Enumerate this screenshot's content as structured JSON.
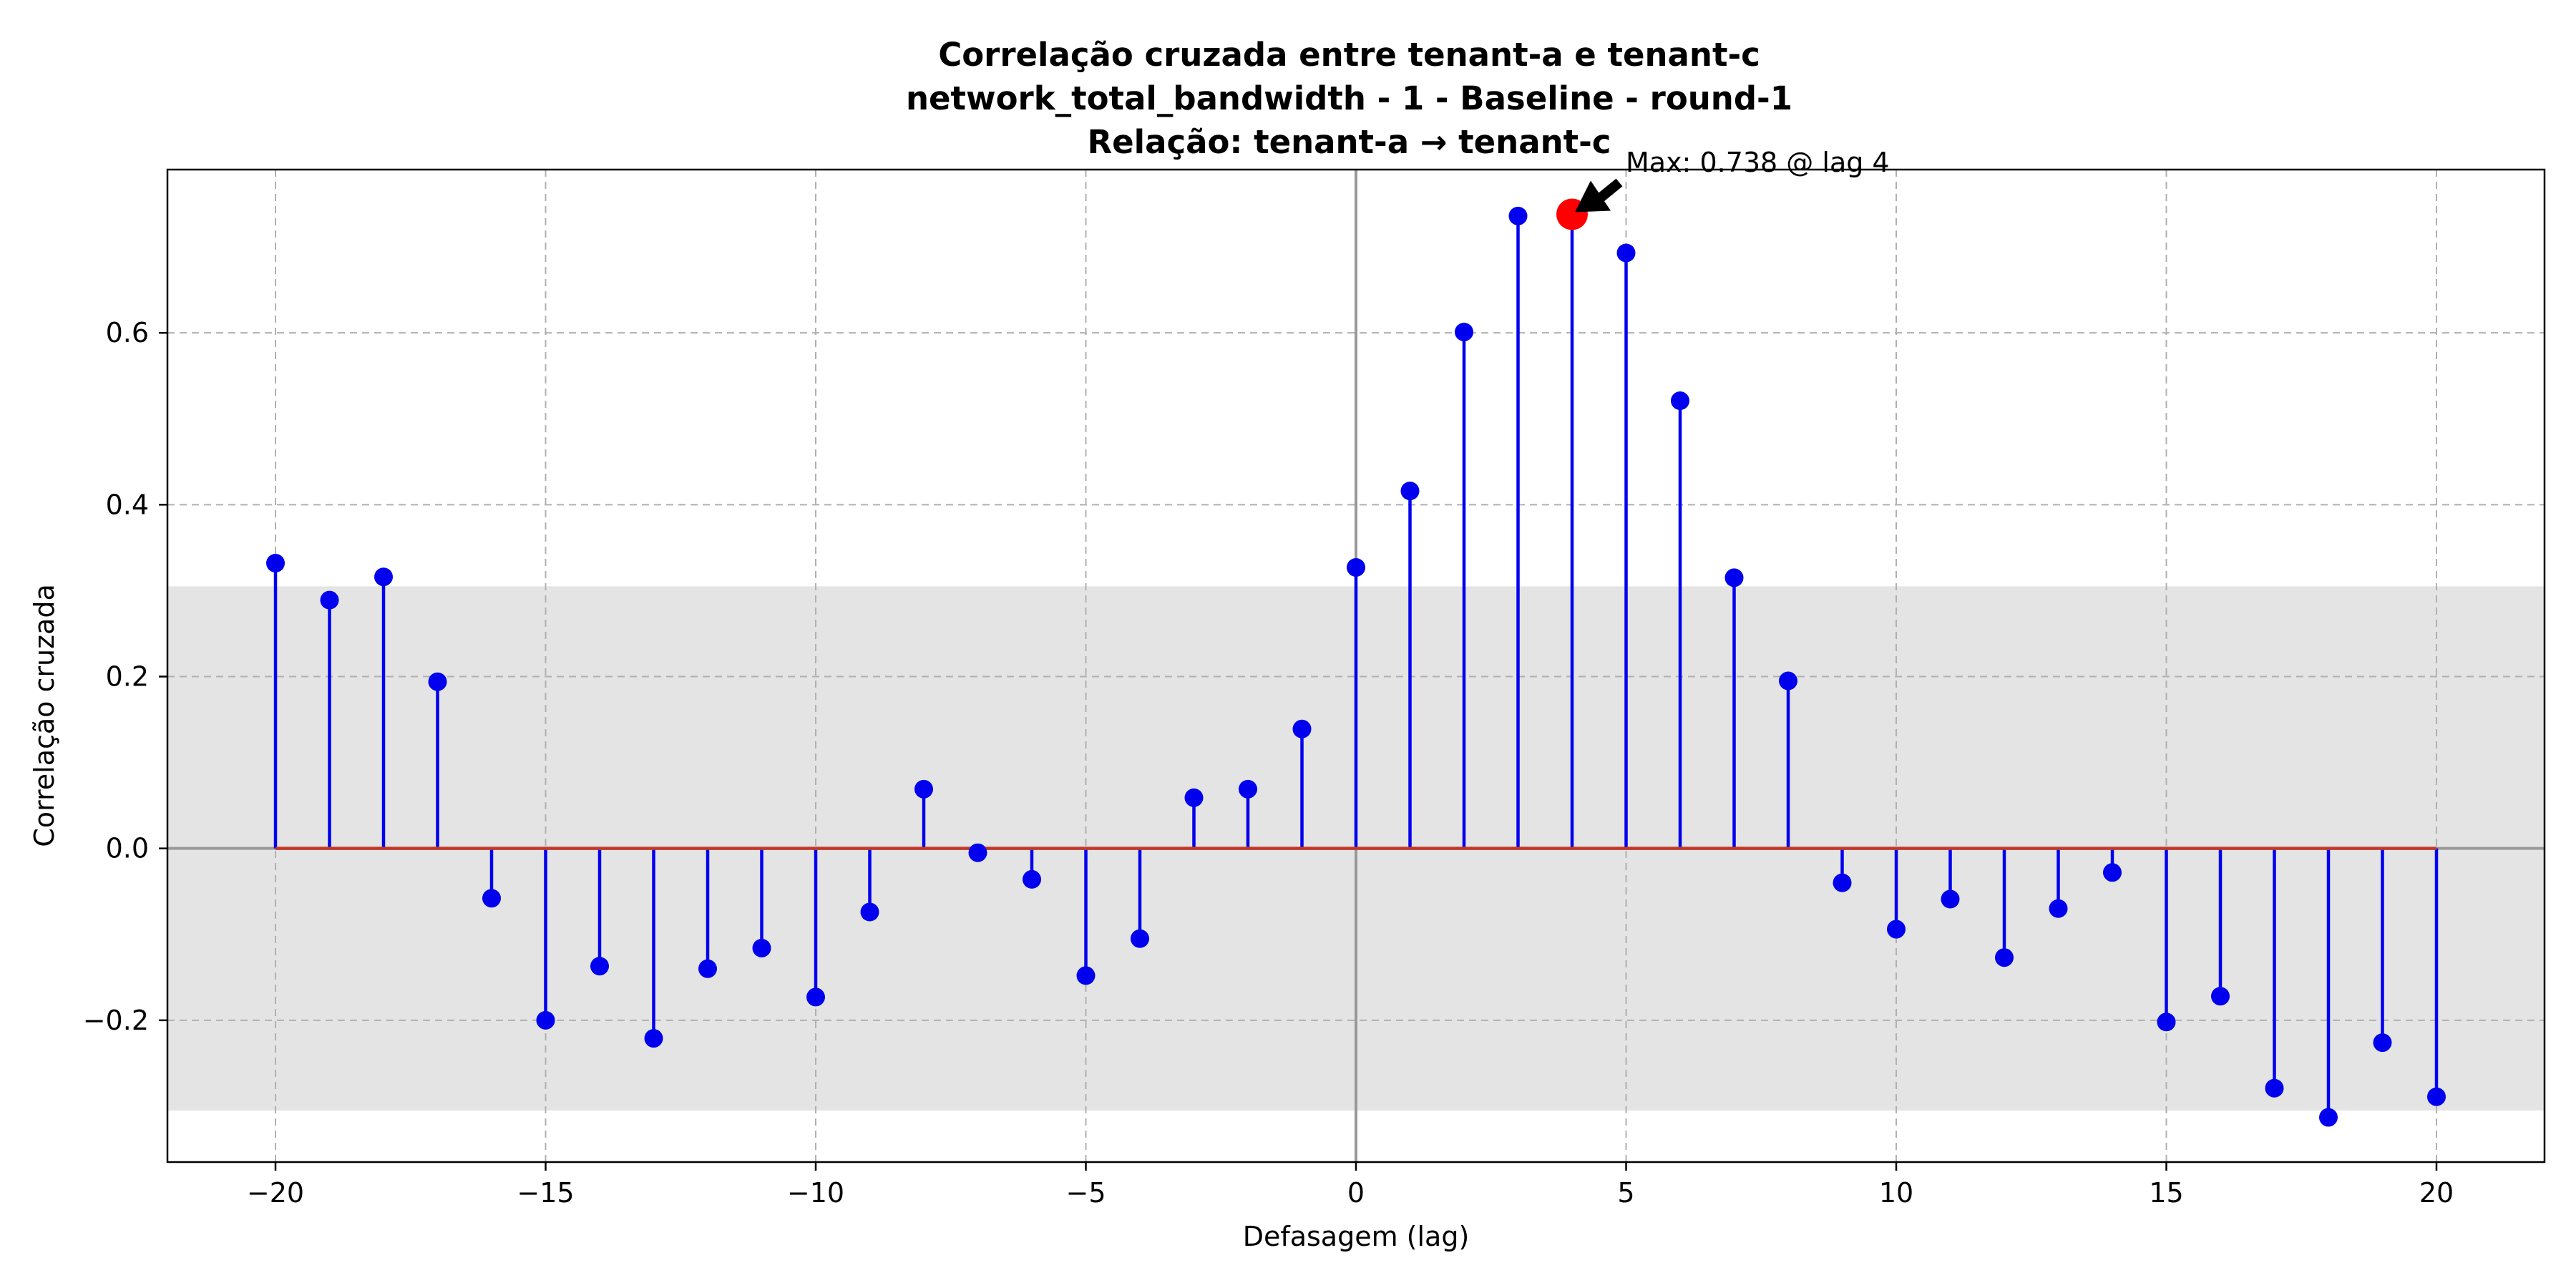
{
  "chart_data": {
    "type": "stem",
    "title_lines": [
      "Correlação cruzada entre tenant-a e tenant-c",
      "network_total_bandwidth - 1 - Baseline - round-1",
      "Relação: tenant-a → tenant-c"
    ],
    "xlabel": "Defasagem (lag)",
    "ylabel": "Correlação cruzada",
    "xlim": [
      -22,
      22
    ],
    "ylim": [
      -0.365,
      0.79
    ],
    "xticks": [
      -20,
      -15,
      -10,
      -5,
      0,
      5,
      10,
      15,
      20
    ],
    "xtick_labels": [
      "−20",
      "−15",
      "−10",
      "−5",
      "0",
      "5",
      "10",
      "15",
      "20"
    ],
    "yticks": [
      -0.2,
      0.0,
      0.2,
      0.4,
      0.6
    ],
    "ytick_labels": [
      "−0.2",
      "0.0",
      "0.2",
      "0.4",
      "0.6"
    ],
    "grid": true,
    "confidence_band": [
      -0.305,
      0.305
    ],
    "lags": [
      -20,
      -19,
      -18,
      -17,
      -16,
      -15,
      -14,
      -13,
      -12,
      -11,
      -10,
      -9,
      -8,
      -7,
      -6,
      -5,
      -4,
      -3,
      -2,
      -1,
      0,
      1,
      2,
      3,
      4,
      5,
      6,
      7,
      8,
      9,
      10,
      11,
      12,
      13,
      14,
      15,
      16,
      17,
      18,
      19,
      20
    ],
    "values": [
      0.332,
      0.289,
      0.316,
      0.194,
      -0.058,
      -0.2,
      -0.137,
      -0.221,
      -0.14,
      -0.116,
      -0.173,
      -0.074,
      0.069,
      -0.005,
      -0.036,
      -0.148,
      -0.105,
      0.059,
      0.069,
      0.139,
      0.327,
      0.416,
      0.601,
      0.736,
      0.738,
      0.693,
      0.521,
      0.315,
      0.195,
      -0.04,
      -0.094,
      -0.059,
      -0.127,
      -0.07,
      -0.028,
      -0.202,
      -0.172,
      -0.279,
      -0.313,
      -0.226,
      -0.289
    ],
    "max_point": {
      "lag": 4,
      "value": 0.738
    },
    "annotation": "Max: 0.738 @ lag 4",
    "colors": {
      "stem": "#0000ee",
      "marker": "#0000ee",
      "baseline": "#c0392b",
      "max_marker": "#ff0000",
      "band": "#e4e4e4",
      "grid": "#b0b0b0",
      "zero_line": "#999999"
    }
  }
}
